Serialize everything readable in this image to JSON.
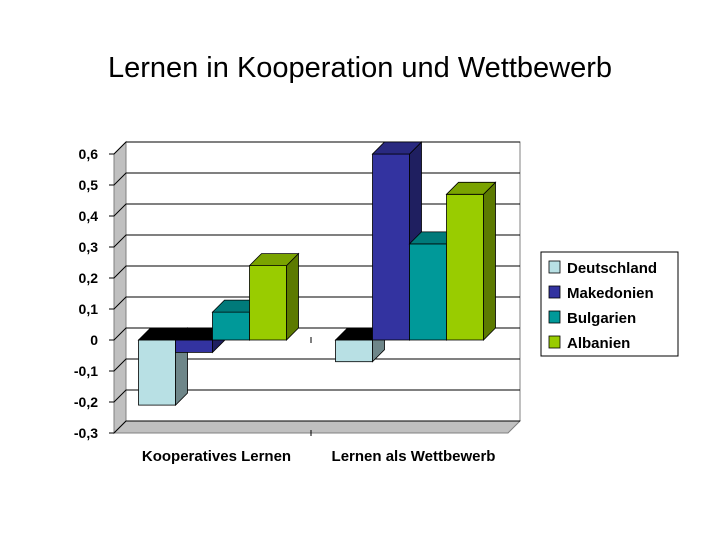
{
  "title": "Lernen in Kooperation und Wettbewerb",
  "chart_data": {
    "type": "bar",
    "categories": [
      "Kooperatives Lernen",
      "Lernen als Wettbewerb"
    ],
    "series": [
      {
        "name": "Deutschland",
        "values": [
          -0.21,
          -0.07
        ],
        "color": "#b8e0e4"
      },
      {
        "name": "Makedonien",
        "values": [
          -0.04,
          0.6
        ],
        "color": "#3333a0"
      },
      {
        "name": "Bulgarien",
        "values": [
          0.09,
          0.31
        ],
        "color": "#009999"
      },
      {
        "name": "Albanien",
        "values": [
          0.24,
          0.47
        ],
        "color": "#99cc00"
      }
    ],
    "ylim": [
      -0.3,
      0.6
    ],
    "yticks": [
      {
        "value": 0.6,
        "label": "0,6"
      },
      {
        "value": 0.5,
        "label": "0,5"
      },
      {
        "value": 0.4,
        "label": "0,4"
      },
      {
        "value": 0.3,
        "label": "0,3"
      },
      {
        "value": 0.2,
        "label": "0,2"
      },
      {
        "value": 0.1,
        "label": "0,1"
      },
      {
        "value": 0,
        "label": "0"
      },
      {
        "value": -0.1,
        "label": "-0,1"
      },
      {
        "value": -0.2,
        "label": "-0,2"
      },
      {
        "value": -0.3,
        "label": "-0,3"
      }
    ],
    "grid": true,
    "style": "3d-clustered-bar",
    "legend_position": "right"
  }
}
